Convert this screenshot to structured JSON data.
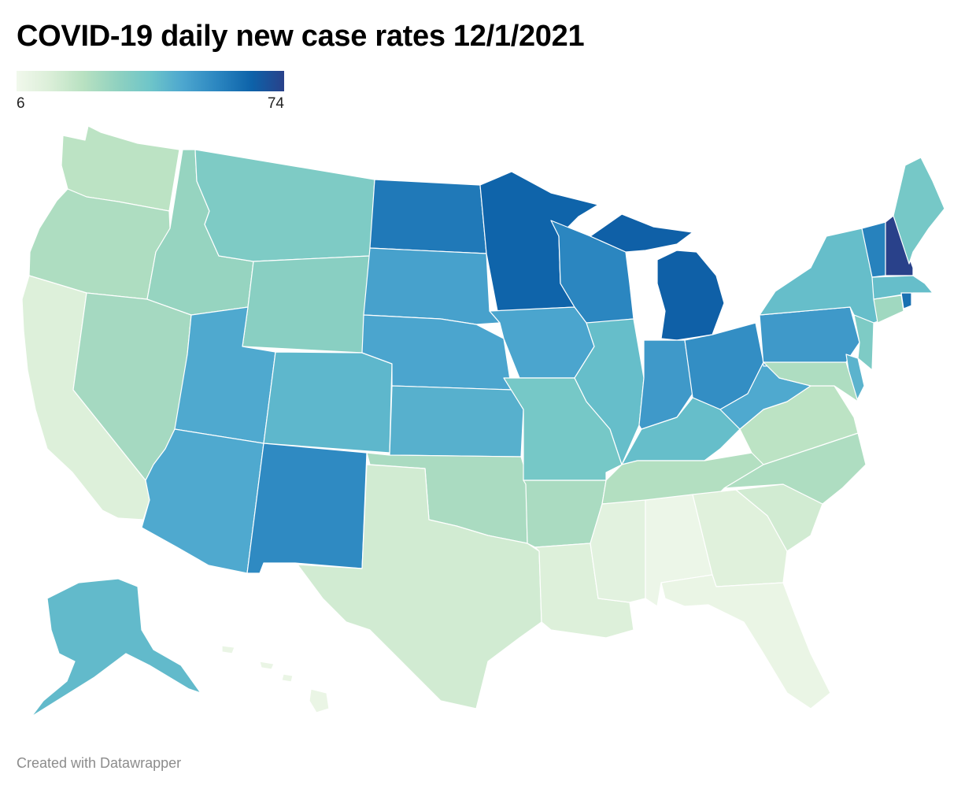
{
  "title": "COVID-19 daily new case rates 12/1/2021",
  "legend": {
    "min_label": "6",
    "max_label": "74",
    "min": 6,
    "max": 74,
    "colors": [
      "#f1f8ec",
      "#dcefd9",
      "#b8e1c1",
      "#8fd1c0",
      "#6ec5c9",
      "#4da7cf",
      "#2b86c0",
      "#0d62a9",
      "#29418a"
    ]
  },
  "footer": "Created with Datawrapper",
  "map_data": {
    "type": "choropleth",
    "region": "United States",
    "color_scale": "sequential",
    "states": [
      {
        "state": "Washington",
        "value": 22
      },
      {
        "state": "Oregon",
        "value": 25
      },
      {
        "state": "California",
        "value": 14
      },
      {
        "state": "Nevada",
        "value": 27
      },
      {
        "state": "Idaho",
        "value": 30
      },
      {
        "state": "Montana",
        "value": 36
      },
      {
        "state": "Wyoming",
        "value": 33
      },
      {
        "state": "Utah",
        "value": 48
      },
      {
        "state": "Arizona",
        "value": 48
      },
      {
        "state": "Colorado",
        "value": 44
      },
      {
        "state": "New Mexico",
        "value": 56
      },
      {
        "state": "North Dakota",
        "value": 60
      },
      {
        "state": "South Dakota",
        "value": 50
      },
      {
        "state": "Nebraska",
        "value": 49
      },
      {
        "state": "Kansas",
        "value": 46
      },
      {
        "state": "Oklahoma",
        "value": 26
      },
      {
        "state": "Texas",
        "value": 17
      },
      {
        "state": "Minnesota",
        "value": 65
      },
      {
        "state": "Iowa",
        "value": 49
      },
      {
        "state": "Missouri",
        "value": 38
      },
      {
        "state": "Arkansas",
        "value": 26
      },
      {
        "state": "Louisiana",
        "value": 14
      },
      {
        "state": "Wisconsin",
        "value": 57
      },
      {
        "state": "Illinois",
        "value": 42
      },
      {
        "state": "Michigan",
        "value": 66
      },
      {
        "state": "Indiana",
        "value": 52
      },
      {
        "state": "Ohio",
        "value": 55
      },
      {
        "state": "Kentucky",
        "value": 42
      },
      {
        "state": "Tennessee",
        "value": 24
      },
      {
        "state": "Mississippi",
        "value": 12
      },
      {
        "state": "Alabama",
        "value": 8
      },
      {
        "state": "Georgia",
        "value": 13
      },
      {
        "state": "Florida",
        "value": 9
      },
      {
        "state": "South Carolina",
        "value": 17
      },
      {
        "state": "North Carolina",
        "value": 25
      },
      {
        "state": "Virginia",
        "value": 22
      },
      {
        "state": "West Virginia",
        "value": 48
      },
      {
        "state": "Pennsylvania",
        "value": 52
      },
      {
        "state": "New York",
        "value": 42
      },
      {
        "state": "Vermont",
        "value": 58
      },
      {
        "state": "New Hampshire",
        "value": 74
      },
      {
        "state": "Maine",
        "value": 38
      },
      {
        "state": "Massachusetts",
        "value": 42
      },
      {
        "state": "Rhode Island",
        "value": 62
      },
      {
        "state": "Connecticut",
        "value": 28
      },
      {
        "state": "New Jersey",
        "value": 36
      },
      {
        "state": "Delaware",
        "value": 45
      },
      {
        "state": "Maryland",
        "value": 25
      },
      {
        "state": "Alaska",
        "value": 43
      },
      {
        "state": "Hawaii",
        "value": 9
      }
    ]
  }
}
